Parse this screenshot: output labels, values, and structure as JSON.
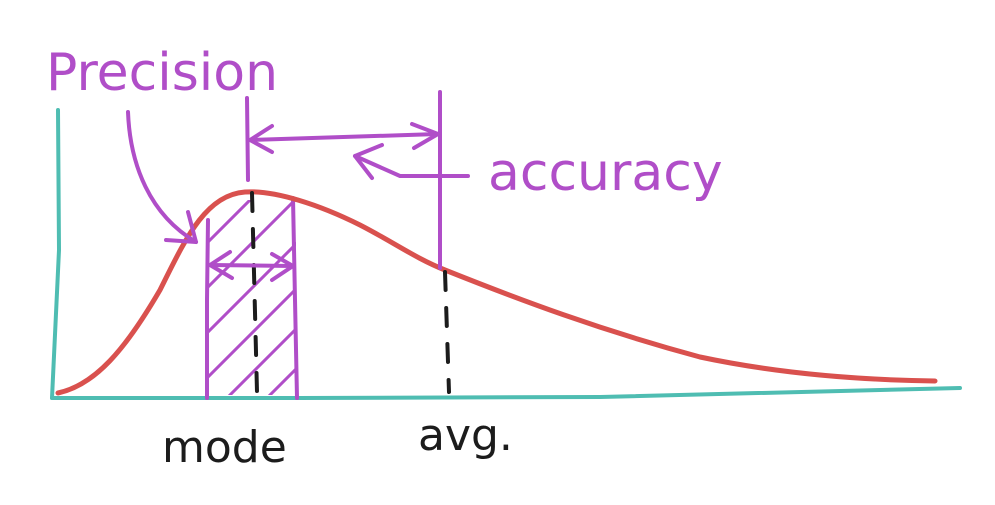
{
  "labels": {
    "precision": "Precision",
    "accuracy": "accuracy",
    "mode": "mode",
    "avg": "avg."
  },
  "colors": {
    "curve": "#d9514e",
    "axis": "#4fbdb2",
    "annotation": "#b04ec8",
    "dashed": "#1c1c1c",
    "text_dark": "#1c1c1c"
  }
}
